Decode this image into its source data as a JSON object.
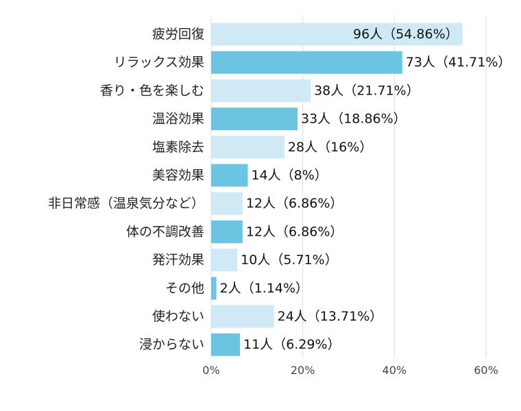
{
  "chart_data": {
    "type": "bar",
    "orientation": "horizontal",
    "categories": [
      "疲労回復",
      "リラックス効果",
      "香り・色を楽しむ",
      "温浴効果",
      "塩素除去",
      "美容効果",
      "非日常感（温泉気分など）",
      "体の不調改善",
      "発汗効果",
      "その他",
      "使わない",
      "浸からない"
    ],
    "values": [
      54.86,
      41.71,
      21.71,
      18.86,
      16,
      8,
      6.86,
      6.86,
      5.71,
      1.14,
      13.71,
      6.29
    ],
    "data_labels": [
      "96人（54.86%）",
      "73人（41.71%）",
      "38人（21.71%）",
      "33人（18.86%）",
      "28人（16%）",
      "14人（8%）",
      "12人（6.86%）",
      "12人（6.86%）",
      "10人（5.71%）",
      "2人（1.14%）",
      "24人（13.71%）",
      "11人（6.29%）"
    ],
    "xlim": [
      0,
      60
    ],
    "xticks": [
      0,
      20,
      40,
      60
    ],
    "xtick_labels": [
      "0%",
      "20%",
      "40%",
      "60%"
    ],
    "grid": true,
    "colors": {
      "light": "#cfeaf5",
      "dark": "#6cc4e3"
    },
    "title": "",
    "xlabel": "",
    "ylabel": ""
  }
}
